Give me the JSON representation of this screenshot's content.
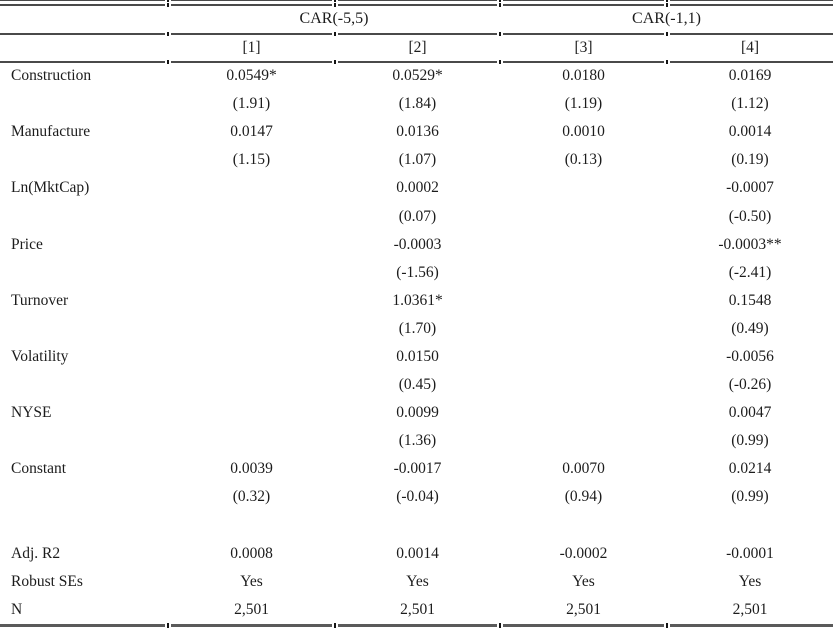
{
  "page": {
    "background_color": "#ffffff",
    "text_color": "#1c1c1c",
    "rule_color": "#4a4a4a"
  },
  "table": {
    "column_groups": [
      {
        "label": "CAR(-5,5)",
        "covers_columns": [
          "[1]",
          "[2]"
        ]
      },
      {
        "label": "CAR(-1,1)",
        "covers_columns": [
          "[3]",
          "[4]"
        ]
      }
    ],
    "column_headers": [
      "[1]",
      "[2]",
      "[3]",
      "[4]"
    ],
    "rows": [
      {
        "label": "Construction",
        "values": [
          "0.0549*",
          "0.0529*",
          "0.0180",
          "0.0169"
        ]
      },
      {
        "label": "",
        "values": [
          "(1.91)",
          "(1.84)",
          "(1.19)",
          "(1.12)"
        ]
      },
      {
        "label": "Manufacture",
        "values": [
          "0.0147",
          "0.0136",
          "0.0010",
          "0.0014"
        ]
      },
      {
        "label": "",
        "values": [
          "(1.15)",
          "(1.07)",
          "(0.13)",
          "(0.19)"
        ]
      },
      {
        "label": "Ln(MktCap)",
        "values": [
          "",
          "0.0002",
          "",
          "-0.0007"
        ]
      },
      {
        "label": "",
        "values": [
          "",
          "(0.07)",
          "",
          "(-0.50)"
        ]
      },
      {
        "label": "Price",
        "values": [
          "",
          "-0.0003",
          "",
          "-0.0003**"
        ]
      },
      {
        "label": "",
        "values": [
          "",
          "(-1.56)",
          "",
          "(-2.41)"
        ]
      },
      {
        "label": "Turnover",
        "values": [
          "",
          "1.0361*",
          "",
          "0.1548"
        ]
      },
      {
        "label": "",
        "values": [
          "",
          "(1.70)",
          "",
          "(0.49)"
        ]
      },
      {
        "label": "Volatility",
        "values": [
          "",
          "0.0150",
          "",
          "-0.0056"
        ]
      },
      {
        "label": "",
        "values": [
          "",
          "(0.45)",
          "",
          "(-0.26)"
        ]
      },
      {
        "label": "NYSE",
        "values": [
          "",
          "0.0099",
          "",
          "0.0047"
        ]
      },
      {
        "label": "",
        "values": [
          "",
          "(1.36)",
          "",
          "(0.99)"
        ]
      },
      {
        "label": "Constant",
        "values": [
          "0.0039",
          "-0.0017",
          "0.0070",
          "0.0214"
        ]
      },
      {
        "label": "",
        "values": [
          "(0.32)",
          "(-0.04)",
          "(0.94)",
          "(0.99)"
        ]
      },
      {
        "label": "",
        "values": [
          "",
          "",
          "",
          ""
        ]
      },
      {
        "label": "Adj. R2",
        "values": [
          "0.0008",
          "0.0014",
          "-0.0002",
          "-0.0001"
        ]
      },
      {
        "label": "Robust SEs",
        "values": [
          "Yes",
          "Yes",
          "Yes",
          "Yes"
        ]
      },
      {
        "label": "N",
        "values": [
          "2,501",
          "2,501",
          "2,501",
          "2,501"
        ]
      }
    ]
  }
}
